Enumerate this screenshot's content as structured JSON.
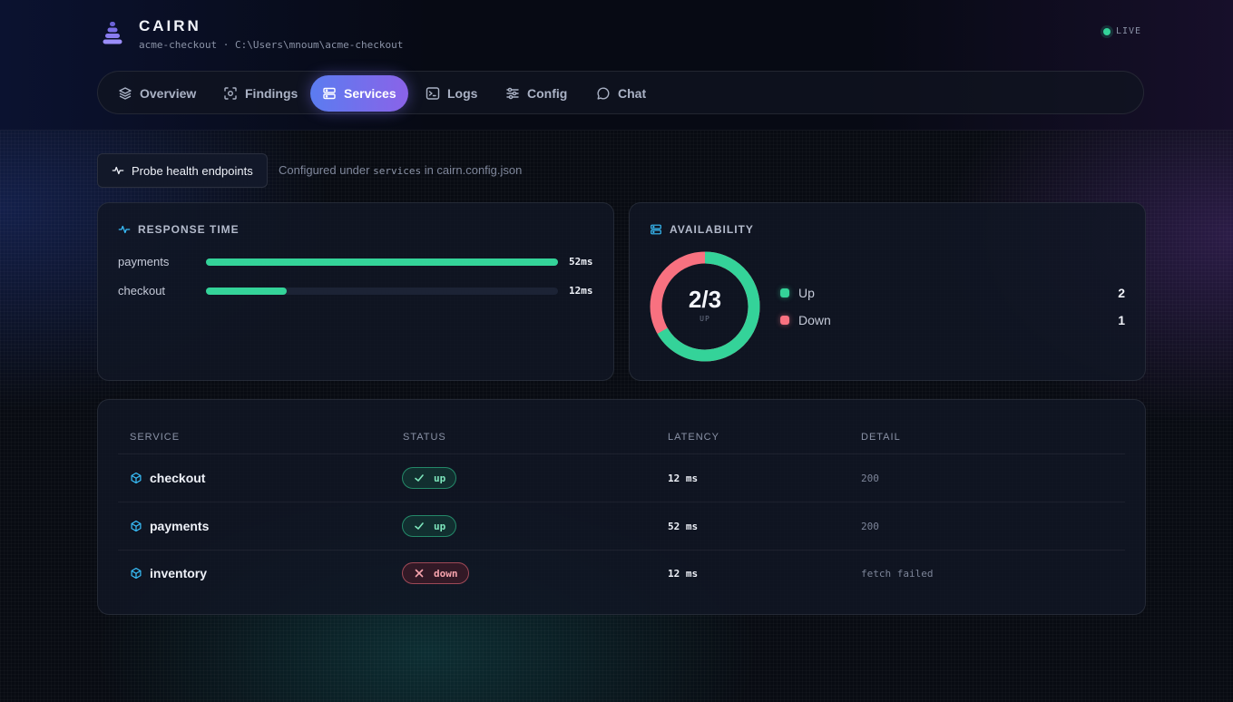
{
  "app": {
    "brand": "CAIRN",
    "project": "acme-checkout",
    "path": "C:\\Users\\mnoum\\acme-checkout",
    "status": "LIVE",
    "status_color": "#34d399"
  },
  "nav": {
    "tabs": [
      {
        "label": "Overview",
        "icon": "layers-icon"
      },
      {
        "label": "Findings",
        "icon": "scan-icon"
      },
      {
        "label": "Services",
        "icon": "server-icon",
        "active": true
      },
      {
        "label": "Logs",
        "icon": "terminal-icon"
      },
      {
        "label": "Config",
        "icon": "sliders-icon"
      },
      {
        "label": "Chat",
        "icon": "chat-bubble-icon"
      }
    ],
    "accent_gradient": [
      "#5b7cf0",
      "#8a63e8"
    ]
  },
  "toolbar": {
    "probe_label": "Probe health endpoints",
    "note_prefix": "Configured under",
    "note_code": "services",
    "note_suffix": "in cairn.config.json"
  },
  "response_time": {
    "title": "RESPONSE TIME",
    "rows": [
      {
        "service": "payments",
        "ms": 52,
        "label": "52ms",
        "fraction": 1.0
      },
      {
        "service": "checkout",
        "ms": 12,
        "label": "12ms",
        "fraction": 0.23
      }
    ],
    "bar_color": "#34d399"
  },
  "availability": {
    "title": "AVAILABILITY",
    "ratio": "2/3",
    "ratio_caption": "UP",
    "up": 2,
    "total": 3,
    "legend": [
      {
        "label": "Up",
        "count": "2",
        "color": "#34d399"
      },
      {
        "label": "Down",
        "count": "1",
        "color": "#f87180"
      }
    ]
  },
  "table": {
    "headers": {
      "service": "SERVICE",
      "status": "STATUS",
      "latency": "LATENCY",
      "detail": "DETAIL"
    },
    "rows": [
      {
        "service": "checkout",
        "status": "up",
        "latency": "12 ms",
        "detail": "200"
      },
      {
        "service": "payments",
        "status": "up",
        "latency": "52 ms",
        "detail": "200"
      },
      {
        "service": "inventory",
        "status": "down",
        "latency": "12 ms",
        "detail": "fetch failed"
      }
    ]
  }
}
